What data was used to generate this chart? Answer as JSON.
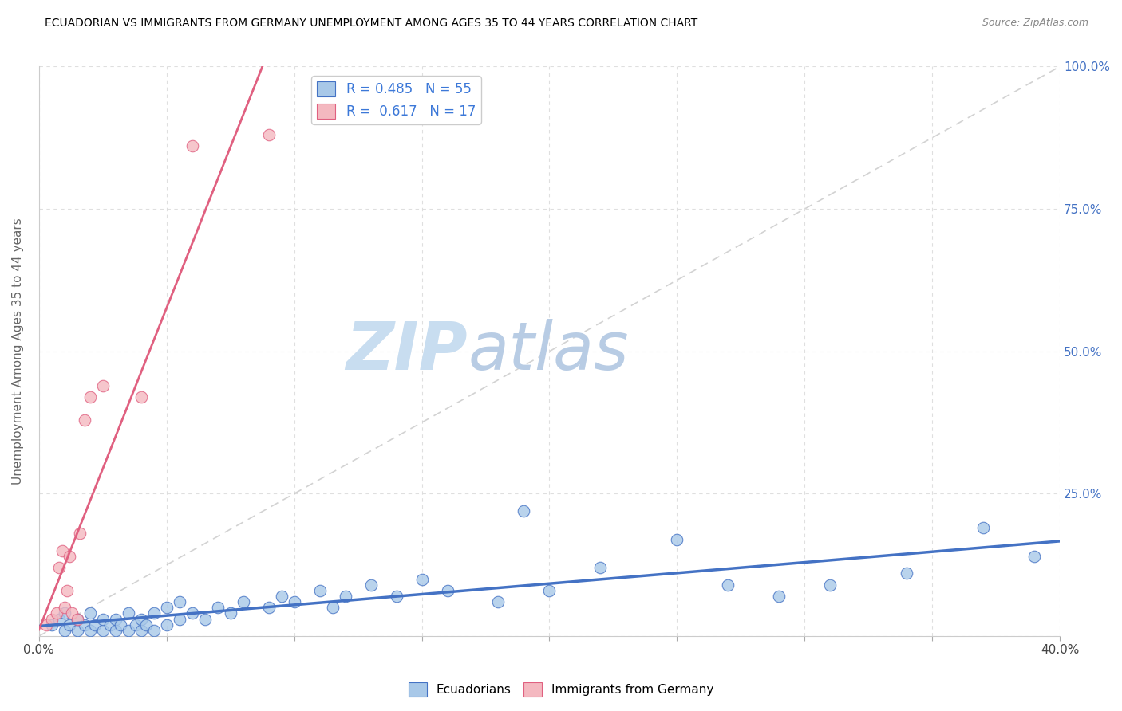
{
  "title": "ECUADORIAN VS IMMIGRANTS FROM GERMANY UNEMPLOYMENT AMONG AGES 35 TO 44 YEARS CORRELATION CHART",
  "source_text": "Source: ZipAtlas.com",
  "ylabel": "Unemployment Among Ages 35 to 44 years",
  "xlim": [
    0.0,
    0.4
  ],
  "ylim": [
    0.0,
    1.0
  ],
  "xticks": [
    0.0,
    0.05,
    0.1,
    0.15,
    0.2,
    0.25,
    0.3,
    0.35,
    0.4
  ],
  "yticks": [
    0.0,
    0.25,
    0.5,
    0.75,
    1.0
  ],
  "blue_scatter_x": [
    0.005,
    0.008,
    0.01,
    0.01,
    0.012,
    0.015,
    0.015,
    0.018,
    0.02,
    0.02,
    0.022,
    0.025,
    0.025,
    0.028,
    0.03,
    0.03,
    0.032,
    0.035,
    0.035,
    0.038,
    0.04,
    0.04,
    0.042,
    0.045,
    0.045,
    0.05,
    0.05,
    0.055,
    0.055,
    0.06,
    0.065,
    0.07,
    0.075,
    0.08,
    0.09,
    0.095,
    0.1,
    0.11,
    0.115,
    0.12,
    0.13,
    0.14,
    0.15,
    0.16,
    0.18,
    0.19,
    0.2,
    0.22,
    0.25,
    0.27,
    0.29,
    0.31,
    0.34,
    0.37,
    0.39
  ],
  "blue_scatter_y": [
    0.02,
    0.03,
    0.01,
    0.04,
    0.02,
    0.01,
    0.03,
    0.02,
    0.01,
    0.04,
    0.02,
    0.01,
    0.03,
    0.02,
    0.01,
    0.03,
    0.02,
    0.01,
    0.04,
    0.02,
    0.01,
    0.03,
    0.02,
    0.01,
    0.04,
    0.02,
    0.05,
    0.03,
    0.06,
    0.04,
    0.03,
    0.05,
    0.04,
    0.06,
    0.05,
    0.07,
    0.06,
    0.08,
    0.05,
    0.07,
    0.09,
    0.07,
    0.1,
    0.08,
    0.06,
    0.22,
    0.08,
    0.12,
    0.17,
    0.09,
    0.07,
    0.09,
    0.11,
    0.19,
    0.14
  ],
  "pink_scatter_x": [
    0.003,
    0.005,
    0.007,
    0.008,
    0.009,
    0.01,
    0.011,
    0.012,
    0.013,
    0.015,
    0.016,
    0.018,
    0.02,
    0.025,
    0.04,
    0.06,
    0.09
  ],
  "pink_scatter_y": [
    0.02,
    0.03,
    0.04,
    0.12,
    0.15,
    0.05,
    0.08,
    0.14,
    0.04,
    0.03,
    0.18,
    0.38,
    0.42,
    0.44,
    0.42,
    0.86,
    0.88
  ],
  "blue_color": "#a8c8e8",
  "pink_color": "#f4b8c0",
  "blue_line_color": "#4472c4",
  "pink_line_color": "#e06080",
  "diag_line_color": "#c0c0c0",
  "R_blue": 0.485,
  "N_blue": 55,
  "R_pink": 0.617,
  "N_pink": 17,
  "watermark_zip": "ZIP",
  "watermark_atlas": "atlas",
  "watermark_color_zip": "#c8ddf0",
  "watermark_color_atlas": "#b8cce4",
  "legend_label_blue": "Ecuadorians",
  "legend_label_pink": "Immigrants from Germany",
  "bg_color": "#ffffff",
  "grid_color": "#d8d8d8",
  "title_color": "#000000",
  "axis_label_color": "#666666",
  "ytick_color": "#4472c4",
  "xtick_color": "#444444"
}
